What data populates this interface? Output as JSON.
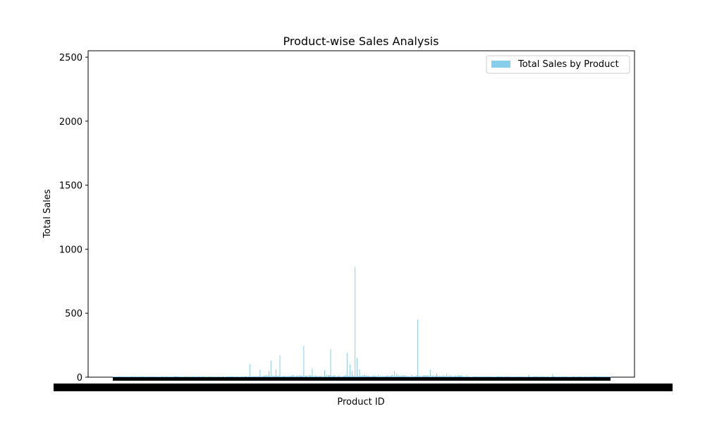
{
  "chart_data": {
    "type": "bar",
    "title": "Product-wise Sales Analysis",
    "xlabel": "Product ID",
    "ylabel": "Total Sales",
    "ylim": [
      0,
      2550
    ],
    "yticks": [
      0,
      500,
      1000,
      1500,
      2000,
      2500
    ],
    "grid": false,
    "legend_position": "upper-right",
    "series": [
      {
        "name": "Total Sales by Product",
        "color": "#87CEEB"
      }
    ],
    "x_tick_labels": "dense overlapping product IDs (illegible)",
    "highlights": [
      {
        "position": 0.06,
        "value": 10
      },
      {
        "position": 0.275,
        "value": 105
      },
      {
        "position": 0.295,
        "value": 60
      },
      {
        "position": 0.313,
        "value": 50
      },
      {
        "position": 0.317,
        "value": 130
      },
      {
        "position": 0.327,
        "value": 60
      },
      {
        "position": 0.335,
        "value": 170
      },
      {
        "position": 0.36,
        "value": 10
      },
      {
        "position": 0.383,
        "value": 245
      },
      {
        "position": 0.4,
        "value": 70
      },
      {
        "position": 0.425,
        "value": 55
      },
      {
        "position": 0.437,
        "value": 220
      },
      {
        "position": 0.445,
        "value": 15
      },
      {
        "position": 0.47,
        "value": 190
      },
      {
        "position": 0.476,
        "value": 100
      },
      {
        "position": 0.48,
        "value": 50
      },
      {
        "position": 0.486,
        "value": 860
      },
      {
        "position": 0.49,
        "value": 150
      },
      {
        "position": 0.495,
        "value": 60
      },
      {
        "position": 0.505,
        "value": 20
      },
      {
        "position": 0.565,
        "value": 50
      },
      {
        "position": 0.57,
        "value": 30
      },
      {
        "position": 0.6,
        "value": 20
      },
      {
        "position": 0.612,
        "value": 450
      },
      {
        "position": 0.637,
        "value": 60
      },
      {
        "position": 0.65,
        "value": 30
      },
      {
        "position": 0.67,
        "value": 25
      },
      {
        "position": 0.71,
        "value": 15
      },
      {
        "position": 0.835,
        "value": 20
      },
      {
        "position": 0.883,
        "value": 25
      }
    ]
  }
}
